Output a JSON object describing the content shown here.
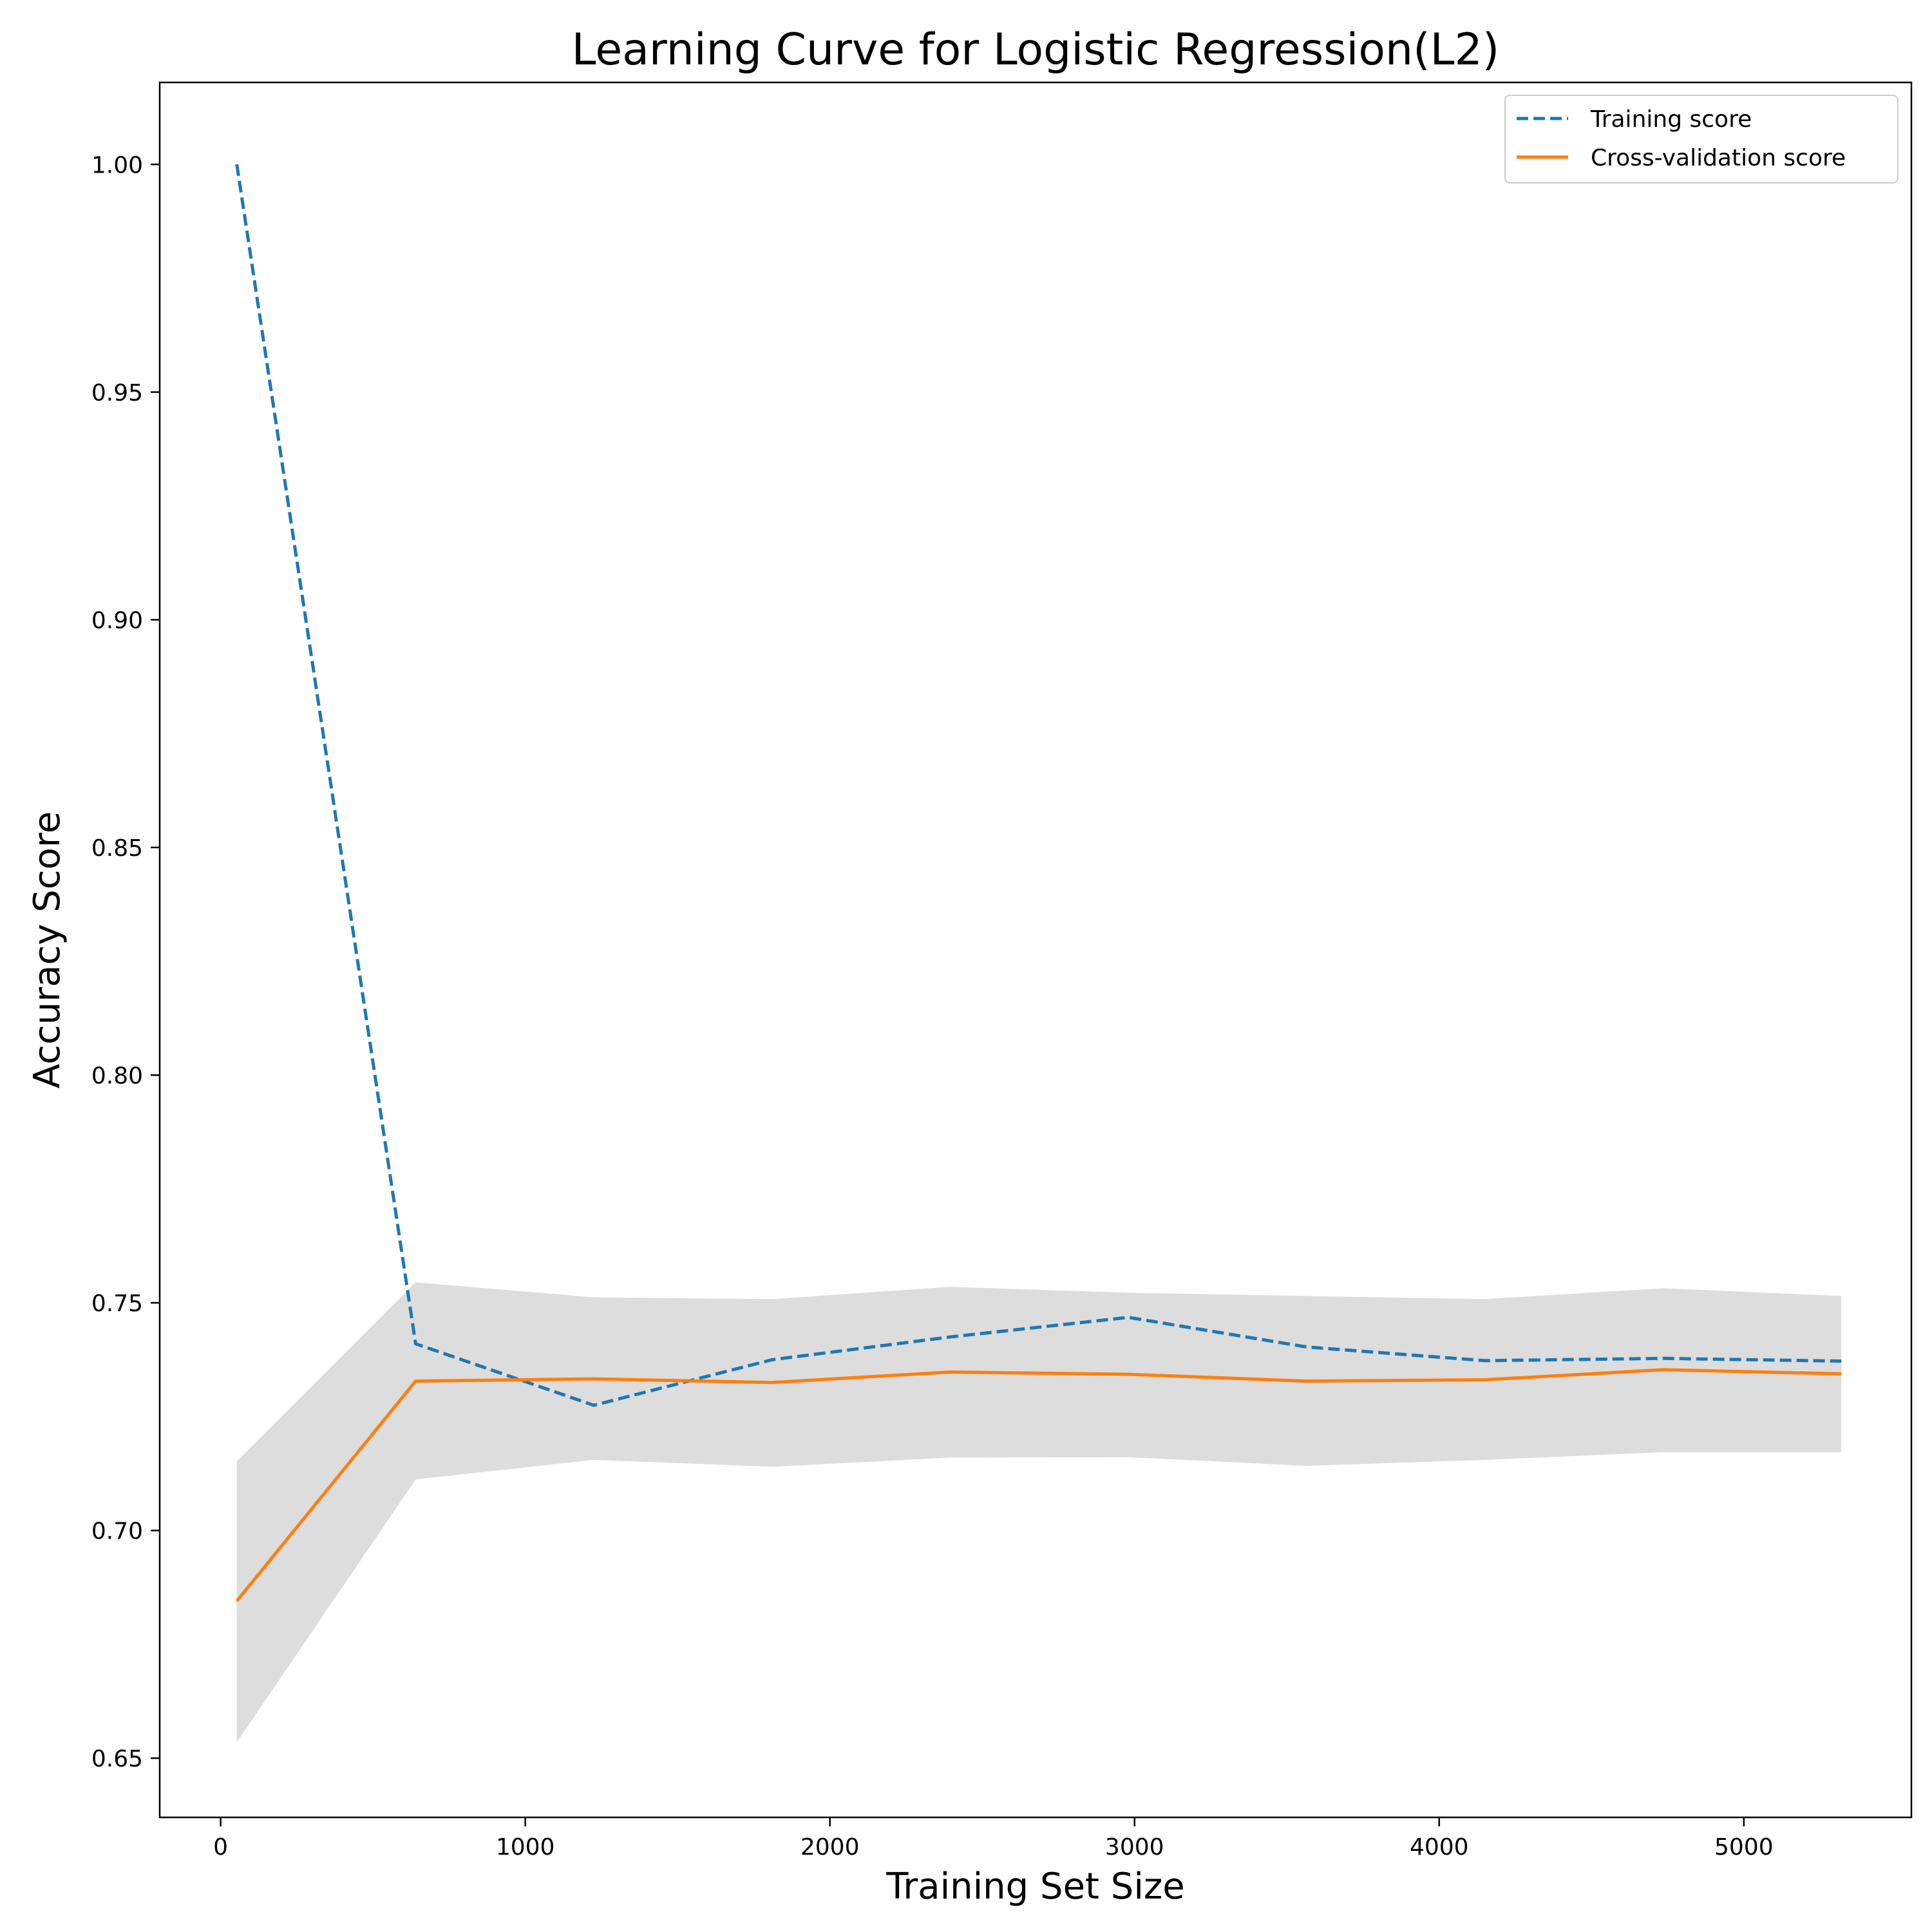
{
  "chart_data": {
    "type": "line",
    "title": "Learning Curve for Logistic Regression(L2)",
    "xlabel": "Training Set Size",
    "ylabel": "Accuracy Score",
    "xlim": [
      -200,
      5550
    ],
    "ylim": [
      0.637,
      1.018
    ],
    "xticks": [
      0,
      1000,
      2000,
      3000,
      4000,
      5000
    ],
    "xtick_labels": [
      "0",
      "1000",
      "2000",
      "3000",
      "4000",
      "5000"
    ],
    "yticks": [
      0.65,
      0.7,
      0.75,
      0.8,
      0.85,
      0.9,
      0.95,
      1.0
    ],
    "ytick_labels": [
      "0.65",
      "0.70",
      "0.75",
      "0.80",
      "0.85",
      "0.90",
      "0.95",
      "1.00"
    ],
    "grid": false,
    "legend_position": "top-right",
    "x": [
      53,
      640,
      1225,
      1810,
      2395,
      2980,
      3565,
      4150,
      4735,
      5320
    ],
    "series": [
      {
        "name": "Training score",
        "style": "dashed",
        "color": "#1f77b4",
        "values": [
          1.0,
          0.741,
          0.7275,
          0.7375,
          0.7425,
          0.7468,
          0.7403,
          0.7373,
          0.7378,
          0.7372
        ]
      },
      {
        "name": "Cross-validation score",
        "style": "solid",
        "color": "#ff7f0e",
        "values": [
          0.6845,
          0.7328,
          0.7333,
          0.7325,
          0.7348,
          0.7343,
          0.7328,
          0.7331,
          0.7353,
          0.7344
        ]
      }
    ],
    "band": {
      "color": "#dddddd",
      "lower": [
        0.6535,
        0.7112,
        0.7155,
        0.714,
        0.716,
        0.7161,
        0.7142,
        0.7155,
        0.7172,
        0.7172
      ],
      "upper": [
        0.7152,
        0.7545,
        0.7512,
        0.7508,
        0.7535,
        0.7522,
        0.7515,
        0.7508,
        0.7532,
        0.7515
      ]
    }
  }
}
